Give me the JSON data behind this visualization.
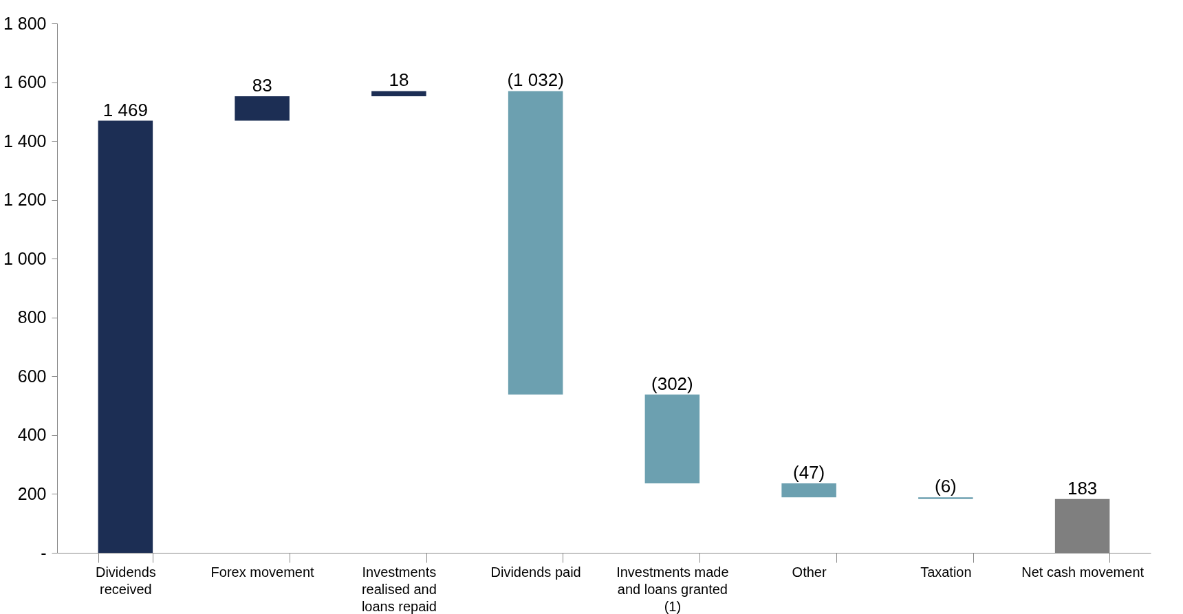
{
  "chart_data": {
    "type": "bar",
    "categories": [
      "Dividends received",
      "Forex movement",
      "Investments realised and loans repaid",
      "Dividends paid",
      "Investments made and loans granted (1)",
      "Other",
      "Taxation",
      "Net cash movement"
    ],
    "values": [
      1469,
      83,
      18,
      -1032,
      -302,
      -47,
      -6,
      183
    ],
    "base": [
      0,
      1469,
      1552,
      1570,
      538,
      236,
      189,
      0
    ],
    "colors": [
      "#1c2e54",
      "#1c2e54",
      "#1c2e54",
      "#6ca0b0",
      "#6ca0b0",
      "#6ca0b0",
      "#6ca0b0",
      "#7f7f7f"
    ],
    "value_labels": [
      "1 469",
      "83",
      "18",
      "(1 032)",
      "(302)",
      "(47)",
      "(6)",
      "183"
    ],
    "ylim": [
      0,
      1800
    ],
    "yticks": [
      {
        "value": 0,
        "label": "-"
      },
      200,
      400,
      600,
      800,
      {
        "value": 1000,
        "label": "1 000"
      },
      {
        "value": 1200,
        "label": "1 200"
      },
      {
        "value": 1400,
        "label": "1 400"
      },
      {
        "value": 1600,
        "label": "1 600"
      },
      {
        "value": 1800,
        "label": "1 800"
      }
    ]
  }
}
